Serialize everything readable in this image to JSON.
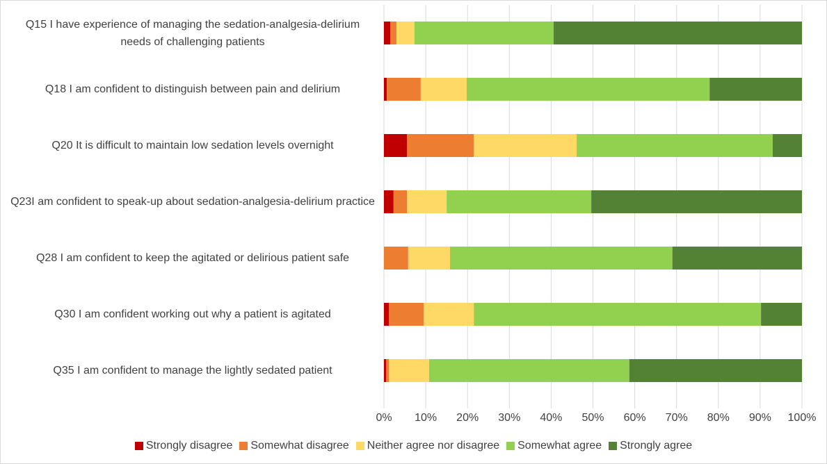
{
  "chart_data": {
    "type": "stacked-barh",
    "categories": [
      "Q15 I have experience of managing the sedation-analgesia-delirium needs of challenging patients",
      "Q18 I am confident to distinguish between pain and delirium",
      "Q20 It is difficult to maintain low sedation levels overnight",
      "Q23I am confident to speak-up about sedation-analgesia-delirium practice",
      "Q28 I am confident to keep the agitated or delirious patient safe",
      "Q30 I am confident working out why a patient is agitated",
      "Q35 I am confident to manage the lightly sedated patient"
    ],
    "series": [
      {
        "name": "Strongly disagree",
        "color": "#c00000",
        "values": [
          1.5,
          0.7,
          5.5,
          2.3,
          0,
          1.2,
          0.5
        ]
      },
      {
        "name": "Somewhat disagree",
        "color": "#ed7d31",
        "values": [
          1.5,
          8.1,
          16.0,
          3.2,
          5.8,
          8.3,
          0.7
        ]
      },
      {
        "name": "Neither agree nor disagree",
        "color": "#ffd966",
        "values": [
          4.3,
          11.0,
          24.6,
          9.5,
          10.0,
          12.0,
          9.6
        ]
      },
      {
        "name": "Somewhat agree",
        "color": "#92d050",
        "values": [
          33.3,
          58.1,
          46.9,
          34.6,
          53.2,
          68.7,
          47.9
        ]
      },
      {
        "name": "Strongly agree",
        "color": "#548235",
        "values": [
          59.4,
          22.1,
          7.0,
          50.4,
          31.0,
          9.8,
          41.3
        ]
      }
    ],
    "xlim": [
      0,
      100
    ],
    "xticks": [
      {
        "value": 0,
        "label": "0%"
      },
      {
        "value": 10,
        "label": "10%"
      },
      {
        "value": 20,
        "label": "20%"
      },
      {
        "value": 30,
        "label": "30%"
      },
      {
        "value": 40,
        "label": "40%"
      },
      {
        "value": 50,
        "label": "50%"
      },
      {
        "value": 60,
        "label": "60%"
      },
      {
        "value": 70,
        "label": "70%"
      },
      {
        "value": 80,
        "label": "80%"
      },
      {
        "value": 90,
        "label": "90%"
      },
      {
        "value": 100,
        "label": "100%"
      }
    ],
    "grid": true,
    "legend": "bottom"
  }
}
